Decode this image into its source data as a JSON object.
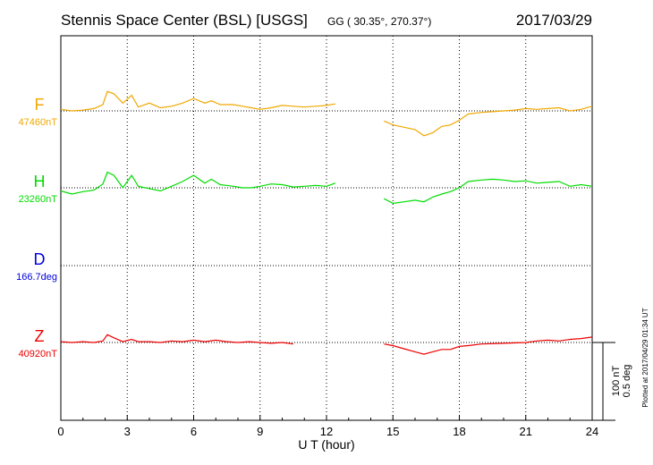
{
  "header": {
    "station": "Stennis Space Center (BSL)  [USGS]",
    "coords": "GG ( 30.35°, 270.37°)",
    "date": "2017/03/29"
  },
  "plotted_note": "Plotted at 2017/04/29 01:34 UT",
  "scale_note": {
    "line1": "100 nT",
    "line2": "0.5 deg"
  },
  "colors": {
    "F": "#f0a800",
    "H": "#00dd00",
    "D": "#0000dd",
    "Z": "#ee0000",
    "axis": "#000000"
  },
  "chart_data": {
    "type": "line",
    "xlabel": "U T (hour)",
    "xlim": [
      0,
      24
    ],
    "xticks": [
      0,
      3,
      6,
      9,
      12,
      15,
      18,
      21,
      24
    ],
    "grid": true,
    "gap": [
      12.4,
      14.6
    ],
    "scale_bar": {
      "nT": 100,
      "deg": 0.5
    },
    "series": [
      {
        "name": "F",
        "baseline_label": "47460nT",
        "baseline": 47460,
        "unit": "nT",
        "points": [
          [
            0,
            47462
          ],
          [
            0.5,
            47460
          ],
          [
            1.0,
            47461
          ],
          [
            1.5,
            47463
          ],
          [
            1.9,
            47468
          ],
          [
            2.1,
            47485
          ],
          [
            2.4,
            47482
          ],
          [
            2.8,
            47470
          ],
          [
            3.2,
            47480
          ],
          [
            3.5,
            47465
          ],
          [
            4.0,
            47470
          ],
          [
            4.5,
            47464
          ],
          [
            5.0,
            47466
          ],
          [
            5.5,
            47470
          ],
          [
            6.0,
            47476
          ],
          [
            6.5,
            47470
          ],
          [
            6.8,
            47473
          ],
          [
            7.2,
            47468
          ],
          [
            7.8,
            47468
          ],
          [
            8.2,
            47466
          ],
          [
            8.6,
            47464
          ],
          [
            9.0,
            47462
          ],
          [
            9.5,
            47464
          ],
          [
            10.0,
            47467
          ],
          [
            10.5,
            47466
          ],
          [
            11.0,
            47465
          ],
          [
            11.5,
            47466
          ],
          [
            12.0,
            47467
          ],
          [
            12.4,
            47469
          ],
          [
            14.6,
            47447
          ],
          [
            15.0,
            47442
          ],
          [
            15.5,
            47439
          ],
          [
            16.0,
            47436
          ],
          [
            16.4,
            47428
          ],
          [
            16.8,
            47432
          ],
          [
            17.2,
            47440
          ],
          [
            17.6,
            47442
          ],
          [
            18.0,
            47448
          ],
          [
            18.4,
            47456
          ],
          [
            19.0,
            47458
          ],
          [
            19.5,
            47459
          ],
          [
            20.0,
            47460
          ],
          [
            20.5,
            47461
          ],
          [
            21.0,
            47463
          ],
          [
            21.5,
            47462
          ],
          [
            22.0,
            47463
          ],
          [
            22.5,
            47464
          ],
          [
            23.0,
            47460
          ],
          [
            23.5,
            47462
          ],
          [
            24.0,
            47466
          ]
        ]
      },
      {
        "name": "H",
        "baseline_label": "23260nT",
        "baseline": 23260,
        "unit": "nT",
        "points": [
          [
            0,
            23256
          ],
          [
            0.5,
            23252
          ],
          [
            1.0,
            23255
          ],
          [
            1.5,
            23257
          ],
          [
            1.9,
            23265
          ],
          [
            2.1,
            23280
          ],
          [
            2.4,
            23276
          ],
          [
            2.8,
            23260
          ],
          [
            3.2,
            23276
          ],
          [
            3.5,
            23262
          ],
          [
            4.0,
            23259
          ],
          [
            4.5,
            23256
          ],
          [
            5.0,
            23262
          ],
          [
            5.5,
            23268
          ],
          [
            6.0,
            23276
          ],
          [
            6.5,
            23266
          ],
          [
            6.8,
            23271
          ],
          [
            7.2,
            23264
          ],
          [
            7.8,
            23262
          ],
          [
            8.2,
            23260
          ],
          [
            8.6,
            23260
          ],
          [
            9.0,
            23262
          ],
          [
            9.5,
            23265
          ],
          [
            10.0,
            23264
          ],
          [
            10.5,
            23261
          ],
          [
            11.0,
            23262
          ],
          [
            11.5,
            23263
          ],
          [
            12.0,
            23262
          ],
          [
            12.4,
            23266
          ],
          [
            14.6,
            23246
          ],
          [
            15.0,
            23240
          ],
          [
            15.5,
            23242
          ],
          [
            16.0,
            23244
          ],
          [
            16.4,
            23242
          ],
          [
            16.8,
            23248
          ],
          [
            17.2,
            23252
          ],
          [
            17.6,
            23255
          ],
          [
            18.0,
            23260
          ],
          [
            18.4,
            23268
          ],
          [
            19.0,
            23270
          ],
          [
            19.5,
            23271
          ],
          [
            20.0,
            23270
          ],
          [
            20.5,
            23268
          ],
          [
            21.0,
            23269
          ],
          [
            21.5,
            23266
          ],
          [
            22.0,
            23267
          ],
          [
            22.5,
            23268
          ],
          [
            23.0,
            23262
          ],
          [
            23.5,
            23264
          ],
          [
            24.0,
            23262
          ]
        ]
      },
      {
        "name": "D",
        "baseline_label": "166.7deg",
        "baseline": 166.7,
        "unit": "deg",
        "points": [
          [
            0,
            166.7
          ],
          [
            3,
            166.7
          ],
          [
            6,
            166.7
          ],
          [
            9,
            166.7
          ],
          [
            12.4,
            166.7
          ]
        ]
      },
      {
        "name": "Z",
        "baseline_label": "40920nT",
        "baseline": 40920,
        "unit": "nT",
        "points": [
          [
            0,
            40921
          ],
          [
            0.5,
            40920
          ],
          [
            1.0,
            40921
          ],
          [
            1.5,
            40920
          ],
          [
            1.9,
            40922
          ],
          [
            2.1,
            40930
          ],
          [
            2.4,
            40926
          ],
          [
            2.8,
            40921
          ],
          [
            3.2,
            40924
          ],
          [
            3.5,
            40921
          ],
          [
            4.0,
            40921
          ],
          [
            4.5,
            40920
          ],
          [
            5.0,
            40922
          ],
          [
            5.5,
            40921
          ],
          [
            6.0,
            40923
          ],
          [
            6.5,
            40921
          ],
          [
            7.0,
            40923
          ],
          [
            7.5,
            40921
          ],
          [
            8.0,
            40920
          ],
          [
            8.5,
            40921
          ],
          [
            9.0,
            40920
          ],
          [
            9.5,
            40919
          ],
          [
            10.0,
            40920
          ],
          [
            10.5,
            40918
          ],
          [
            14.6,
            40918
          ],
          [
            15.0,
            40916
          ],
          [
            15.5,
            40912
          ],
          [
            16.0,
            40908
          ],
          [
            16.4,
            40905
          ],
          [
            16.8,
            40908
          ],
          [
            17.2,
            40911
          ],
          [
            17.6,
            40911
          ],
          [
            18.0,
            40915
          ],
          [
            18.4,
            40916
          ],
          [
            19.0,
            40918
          ],
          [
            20.0,
            40919
          ],
          [
            21.0,
            40920
          ],
          [
            21.5,
            40922
          ],
          [
            22.0,
            40923
          ],
          [
            22.5,
            40922
          ],
          [
            23.0,
            40924
          ],
          [
            23.5,
            40925
          ],
          [
            24.0,
            40927
          ]
        ]
      }
    ]
  }
}
